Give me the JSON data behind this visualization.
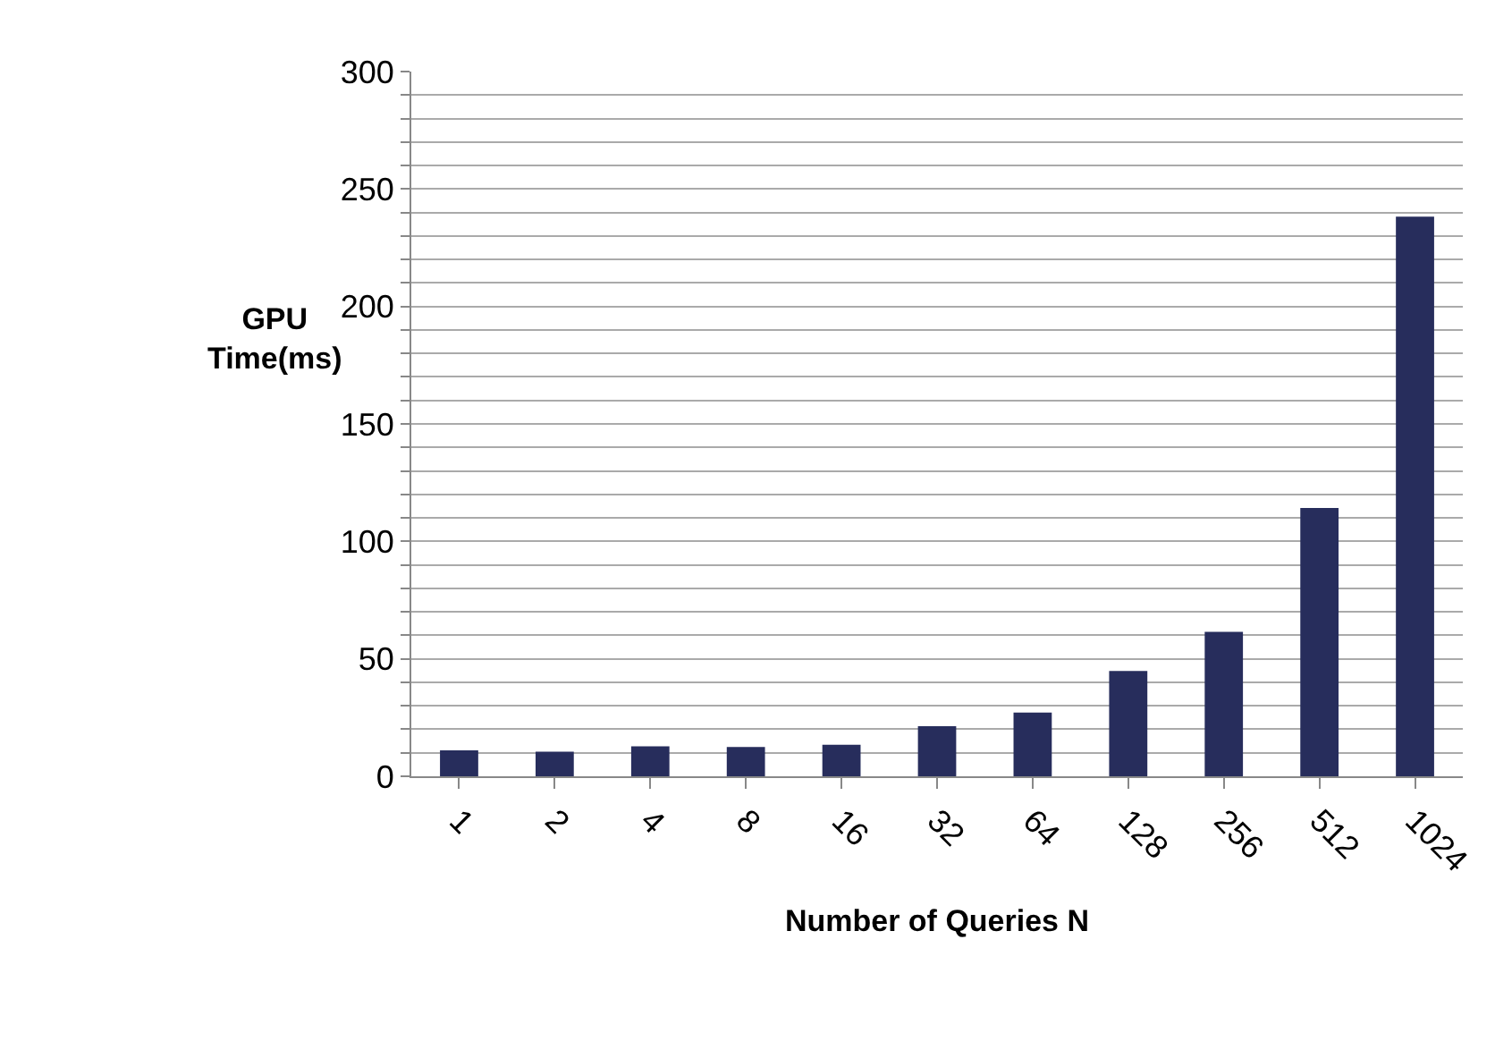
{
  "chart_data": {
    "type": "bar",
    "xlabel": "Number of Queries N",
    "ylabel": "GPU\nTime(ms)",
    "categories": [
      "1",
      "2",
      "4",
      "8",
      "16",
      "32",
      "64",
      "128",
      "256",
      "512",
      "1024"
    ],
    "values": [
      11,
      10.5,
      12.8,
      12.5,
      13.4,
      21.3,
      27.1,
      44.8,
      61.5,
      114.2,
      238.2
    ],
    "color": "#272d5c",
    "ylim": [
      0,
      300
    ],
    "yticks": [
      0,
      {
        "value": 10,
        "label": null
      },
      {
        "value": 20,
        "label": null
      },
      {
        "value": 30,
        "label": null
      },
      {
        "value": 40,
        "label": null
      },
      50,
      {
        "value": 60,
        "label": null
      },
      {
        "value": 70,
        "label": null
      },
      {
        "value": 80,
        "label": null
      },
      {
        "value": 90,
        "label": null
      },
      100,
      {
        "value": 110,
        "label": null
      },
      {
        "value": 120,
        "label": null
      },
      {
        "value": 130,
        "label": null
      },
      {
        "value": 140,
        "label": null
      },
      150,
      {
        "value": 160,
        "label": null
      },
      {
        "value": 170,
        "label": null
      },
      {
        "value": 180,
        "label": null
      },
      {
        "value": 190,
        "label": null
      },
      200,
      {
        "value": 210,
        "label": null
      },
      {
        "value": 220,
        "label": null
      },
      {
        "value": 230,
        "label": null
      },
      {
        "value": 240,
        "label": null
      },
      250,
      {
        "value": 260,
        "label": null
      },
      {
        "value": 270,
        "label": null
      },
      {
        "value": 280,
        "label": null
      },
      {
        "value": 290,
        "label": null
      },
      300
    ],
    "grid": "y"
  }
}
